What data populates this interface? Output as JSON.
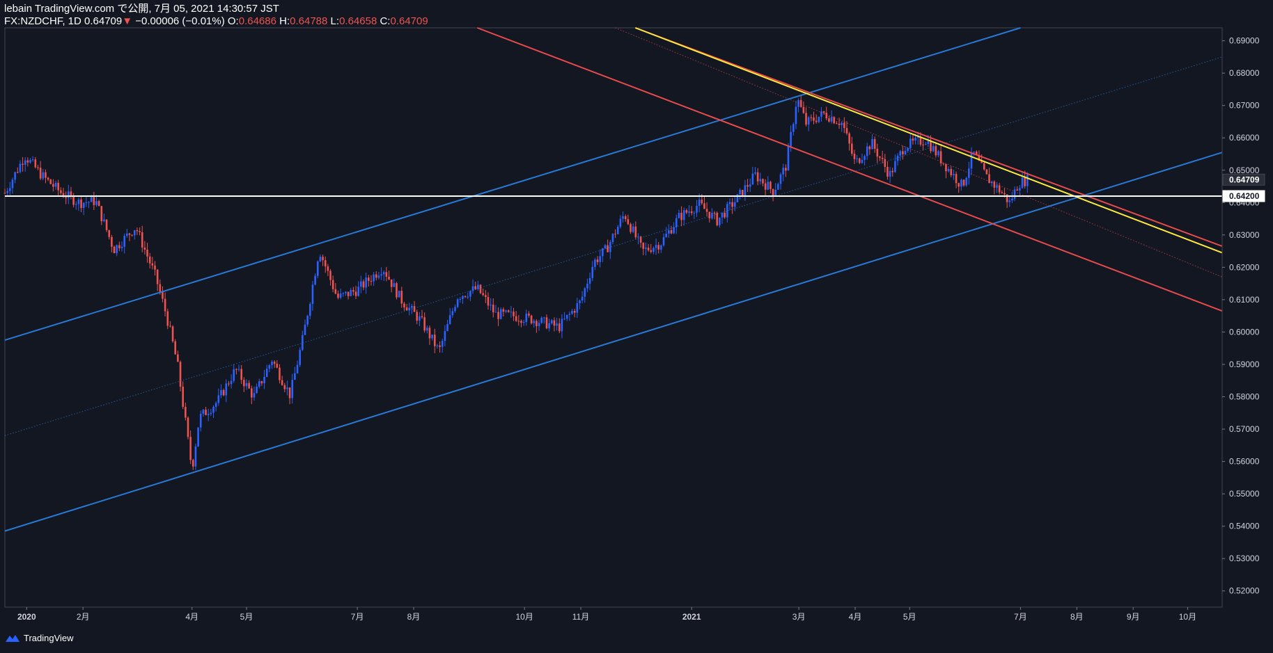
{
  "header": {
    "line1": "lebain TradingView.com で公開, 7月 05, 2021 14:30:57 JST",
    "symbol": "FX:NZDCHF, 1D",
    "last": "0.64709",
    "arrow": "▼",
    "change": "−0.00006 (−0.01%)",
    "o_label": "O:",
    "o_value": "0.64686",
    "h_label": "H:",
    "h_value": "0.64788",
    "l_label": "L:",
    "l_value": "0.64658",
    "c_label": "C:",
    "c_value": "0.64709"
  },
  "footer": {
    "brand": "TradingView"
  },
  "colors": {
    "background": "#131722",
    "up": "#2962ff",
    "down": "#ef5350",
    "channel_blue": "#2979d6",
    "channel_red": "#e84b4b",
    "yellow": "#ffeb3b",
    "level": "#ffffff",
    "axis_text": "#d1d4dc"
  },
  "chart_data": {
    "type": "candlestick",
    "x_range": [
      "2019-12-20",
      "2021-10-20"
    ],
    "ylim": [
      0.515,
      0.694
    ],
    "y_ticks": [
      "0.69000",
      "0.68000",
      "0.67000",
      "0.66000",
      "0.65000",
      "0.64000",
      "0.63000",
      "0.62000",
      "0.61000",
      "0.60000",
      "0.59000",
      "0.58000",
      "0.57000",
      "0.56000",
      "0.55000",
      "0.54000",
      "0.53000",
      "0.52000"
    ],
    "x_ticks": [
      {
        "label": "2020",
        "date": "2020-01-01"
      },
      {
        "label": "2月",
        "date": "2020-02-01"
      },
      {
        "label": "4月",
        "date": "2020-04-01"
      },
      {
        "label": "5月",
        "date": "2020-05-01"
      },
      {
        "label": "7月",
        "date": "2020-07-01"
      },
      {
        "label": "8月",
        "date": "2020-08-01"
      },
      {
        "label": "10月",
        "date": "2020-10-01"
      },
      {
        "label": "11月",
        "date": "2020-11-01"
      },
      {
        "label": "2021",
        "date": "2021-01-01"
      },
      {
        "label": "3月",
        "date": "2021-03-01"
      },
      {
        "label": "4月",
        "date": "2021-04-01"
      },
      {
        "label": "5月",
        "date": "2021-05-01"
      },
      {
        "label": "7月",
        "date": "2021-07-01"
      },
      {
        "label": "8月",
        "date": "2021-08-01"
      },
      {
        "label": "9月",
        "date": "2021-09-01"
      },
      {
        "label": "10月",
        "date": "2021-10-01"
      }
    ],
    "price_series": [
      {
        "date": "2019-12-20",
        "price": 0.643
      },
      {
        "date": "2019-12-31",
        "price": 0.6545
      },
      {
        "date": "2020-01-10",
        "price": 0.648
      },
      {
        "date": "2020-01-20",
        "price": 0.643
      },
      {
        "date": "2020-01-30",
        "price": 0.64
      },
      {
        "date": "2020-02-08",
        "price": 0.6405
      },
      {
        "date": "2020-02-18",
        "price": 0.6255
      },
      {
        "date": "2020-03-01",
        "price": 0.6325
      },
      {
        "date": "2020-03-12",
        "price": 0.617
      },
      {
        "date": "2020-03-18",
        "price": 0.605
      },
      {
        "date": "2020-03-24",
        "price": 0.59
      },
      {
        "date": "2020-04-01",
        "price": 0.5575
      },
      {
        "date": "2020-04-05",
        "price": 0.5735
      },
      {
        "date": "2020-04-15",
        "price": 0.5785
      },
      {
        "date": "2020-04-25",
        "price": 0.5885
      },
      {
        "date": "2020-05-05",
        "price": 0.58
      },
      {
        "date": "2020-05-15",
        "price": 0.5915
      },
      {
        "date": "2020-05-25",
        "price": 0.5805
      },
      {
        "date": "2020-06-01",
        "price": 0.598
      },
      {
        "date": "2020-06-10",
        "price": 0.6255
      },
      {
        "date": "2020-06-20",
        "price": 0.6105
      },
      {
        "date": "2020-07-01",
        "price": 0.613
      },
      {
        "date": "2020-07-15",
        "price": 0.62
      },
      {
        "date": "2020-07-25",
        "price": 0.61
      },
      {
        "date": "2020-08-05",
        "price": 0.6035
      },
      {
        "date": "2020-08-15",
        "price": 0.594
      },
      {
        "date": "2020-08-25",
        "price": 0.611
      },
      {
        "date": "2020-09-05",
        "price": 0.6135
      },
      {
        "date": "2020-09-15",
        "price": 0.6055
      },
      {
        "date": "2020-09-25",
        "price": 0.605
      },
      {
        "date": "2020-10-05",
        "price": 0.604
      },
      {
        "date": "2020-10-20",
        "price": 0.6015
      },
      {
        "date": "2020-11-01",
        "price": 0.6095
      },
      {
        "date": "2020-11-08",
        "price": 0.6215
      },
      {
        "date": "2020-11-15",
        "price": 0.6255
      },
      {
        "date": "2020-11-25",
        "price": 0.6365
      },
      {
        "date": "2020-12-05",
        "price": 0.625
      },
      {
        "date": "2020-12-15",
        "price": 0.6275
      },
      {
        "date": "2020-12-25",
        "price": 0.6355
      },
      {
        "date": "2021-01-05",
        "price": 0.6395
      },
      {
        "date": "2021-01-15",
        "price": 0.6345
      },
      {
        "date": "2021-01-25",
        "price": 0.6405
      },
      {
        "date": "2021-02-05",
        "price": 0.6485
      },
      {
        "date": "2021-02-15",
        "price": 0.6435
      },
      {
        "date": "2021-02-22",
        "price": 0.6515
      },
      {
        "date": "2021-02-28",
        "price": 0.6725
      },
      {
        "date": "2021-03-05",
        "price": 0.6645
      },
      {
        "date": "2021-03-15",
        "price": 0.6675
      },
      {
        "date": "2021-03-25",
        "price": 0.6645
      },
      {
        "date": "2021-04-01",
        "price": 0.652
      },
      {
        "date": "2021-04-10",
        "price": 0.6585
      },
      {
        "date": "2021-04-20",
        "price": 0.6485
      },
      {
        "date": "2021-04-28",
        "price": 0.6575
      },
      {
        "date": "2021-05-10",
        "price": 0.6595
      },
      {
        "date": "2021-05-20",
        "price": 0.652
      },
      {
        "date": "2021-05-30",
        "price": 0.645
      },
      {
        "date": "2021-06-05",
        "price": 0.6555
      },
      {
        "date": "2021-06-12",
        "price": 0.648
      },
      {
        "date": "2021-06-20",
        "price": 0.6435
      },
      {
        "date": "2021-06-25",
        "price": 0.64
      },
      {
        "date": "2021-06-30",
        "price": 0.646
      },
      {
        "date": "2021-07-05",
        "price": 0.64709
      }
    ],
    "annotations": [
      {
        "kind": "channel-upper",
        "color": "blue",
        "points": [
          {
            "date": "2019-12-20",
            "price": 0.5975
          },
          {
            "date": "2021-07-01",
            "price": 0.694
          }
        ]
      },
      {
        "kind": "channel-mid",
        "color": "blue",
        "dotted": true,
        "points": [
          {
            "date": "2019-12-20",
            "price": 0.568
          },
          {
            "date": "2021-10-20",
            "price": 0.685
          }
        ]
      },
      {
        "kind": "channel-lower",
        "color": "blue",
        "points": [
          {
            "date": "2019-12-20",
            "price": 0.5385
          },
          {
            "date": "2021-10-20",
            "price": 0.6555
          }
        ]
      },
      {
        "kind": "down-channel-upper",
        "color": "red",
        "points": [
          {
            "date": "2020-12-01",
            "price": 0.694
          },
          {
            "date": "2021-10-20",
            "price": 0.6265
          }
        ]
      },
      {
        "kind": "down-channel-mid",
        "color": "red",
        "dotted": true,
        "points": [
          {
            "date": "2020-11-20",
            "price": 0.694
          },
          {
            "date": "2021-10-20",
            "price": 0.617
          }
        ]
      },
      {
        "kind": "down-channel-lower",
        "color": "red",
        "points": [
          {
            "date": "2020-09-05",
            "price": 0.694
          },
          {
            "date": "2021-10-20",
            "price": 0.6065
          }
        ]
      },
      {
        "kind": "trendline",
        "color": "yellow",
        "points": [
          {
            "date": "2020-12-01",
            "price": 0.694
          },
          {
            "date": "2021-10-20",
            "price": 0.6245
          }
        ]
      },
      {
        "kind": "horizontal",
        "color": "white",
        "price": 0.642
      }
    ],
    "price_labels": [
      {
        "text": "0.64709",
        "price": 0.64709,
        "style": "last"
      },
      {
        "text": "0.64200",
        "price": 0.642,
        "style": "level"
      }
    ]
  }
}
